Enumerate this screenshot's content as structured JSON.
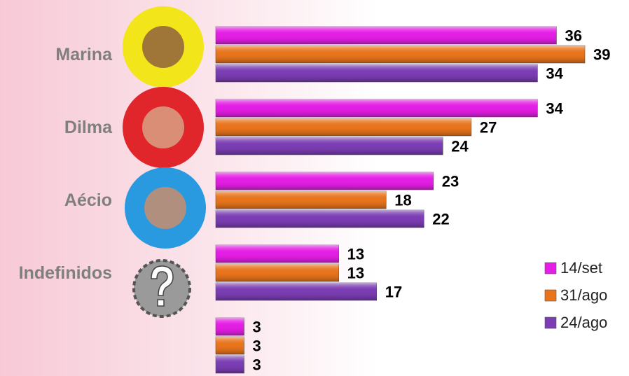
{
  "chart_data": {
    "type": "bar",
    "orientation": "horizontal",
    "categories": [
      "Marina",
      "Dilma",
      "Aécio",
      "Indefinidos",
      null
    ],
    "series": [
      {
        "name": "14/set",
        "color": "#e41ee4",
        "values": [
          36,
          34,
          23,
          13,
          3
        ]
      },
      {
        "name": "31/ago",
        "color": "#e8741c",
        "values": [
          39,
          27,
          18,
          13,
          3
        ]
      },
      {
        "name": "24/ago",
        "color": "#7b3db3",
        "values": [
          34,
          24,
          22,
          17,
          3
        ]
      }
    ],
    "legend": "right"
  }
}
